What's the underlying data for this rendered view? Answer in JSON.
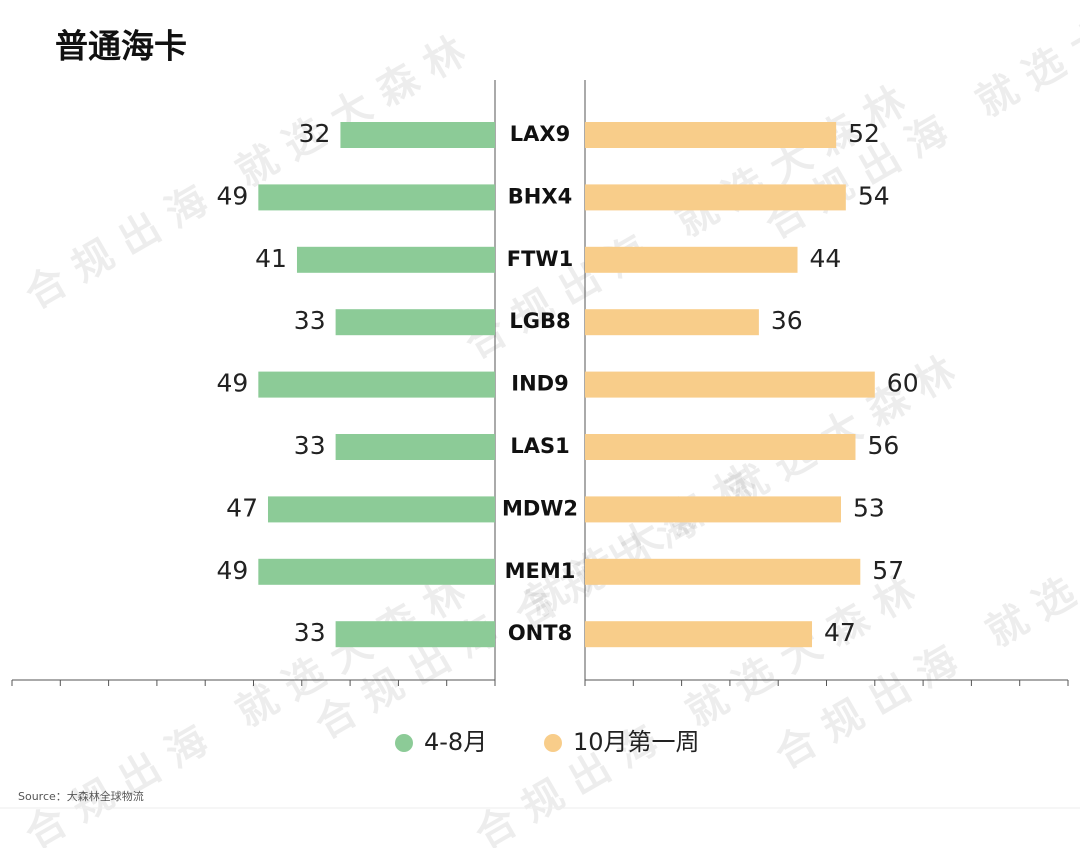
{
  "chart_data": {
    "type": "bar",
    "title": "普通海卡",
    "categories": [
      "LAX9",
      "BHX4",
      "FTW1",
      "LGB8",
      "IND9",
      "LAS1",
      "MDW2",
      "MEM1",
      "ONT8"
    ],
    "series": [
      {
        "name": "4-8月",
        "color": "#8ccb97",
        "values": [
          32,
          49,
          41,
          33,
          49,
          33,
          47,
          49,
          33
        ]
      },
      {
        "name": "10月第一周",
        "color": "#f8cd8a",
        "values": [
          52,
          54,
          44,
          36,
          60,
          56,
          53,
          57,
          47
        ]
      }
    ],
    "xlim": [
      0,
      100
    ],
    "xticks": [
      0,
      10,
      20,
      30,
      40,
      50,
      60,
      70,
      80,
      90,
      100
    ],
    "source": "Source：大森林全球物流",
    "watermark": "合规出海 就选大森林"
  }
}
